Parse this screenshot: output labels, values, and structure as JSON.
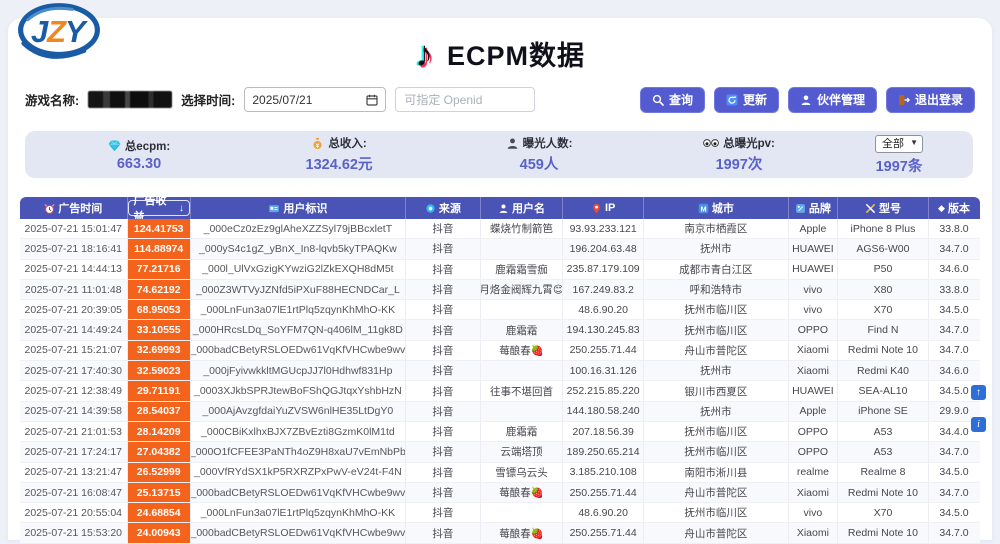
{
  "logo": {
    "text": "JZY"
  },
  "title": {
    "text": "ECPM数据"
  },
  "form": {
    "game_label": "游戏名称:",
    "time_label": "选择时间:",
    "date_value": "2025/07/21",
    "openid_placeholder": "可指定 Openid"
  },
  "actions": {
    "query": "查询",
    "refresh": "更新",
    "partner": "伙伴管理",
    "logout": "退出登录"
  },
  "stats": {
    "ecpm": {
      "label": "总ecpm:",
      "value": "663.30"
    },
    "income": {
      "label": "总收入:",
      "value": "1324.62元"
    },
    "exposure_users": {
      "label": "曝光人数:",
      "value": "459人"
    },
    "exposure_pv": {
      "label": "总曝光pv:",
      "value": "1997次"
    },
    "filter": {
      "selected": "全部",
      "count": "1997条"
    }
  },
  "icons": {
    "sort_arrow": "↓",
    "dropdown_caret": "▼",
    "version_diamond": "◆",
    "note": "♪",
    "float_top": "↑",
    "float_info": "i"
  },
  "table": {
    "columns": [
      "广告时间",
      "广告收益",
      "用户标识",
      "来源",
      "用户名",
      "IP",
      "城市",
      "品牌",
      "型号",
      "版本"
    ],
    "rows": [
      [
        "2025-07-21 15:01:47",
        "124.41753",
        "_000eCz0zEz9glAheXZZSyl79jBBcxletT",
        "抖音",
        "蝶烧竹制箭笆",
        "93.93.233.121",
        "南京市栖霞区",
        "Apple",
        "iPhone 8 Plus",
        "33.8.0"
      ],
      [
        "2025-07-21 18:16:41",
        "114.88974",
        "_000yS4c1gZ_yBnX_In8-lqvb5kyTPAQKw",
        "抖音",
        "",
        "196.204.63.48",
        "抚州市",
        "HUAWEI",
        "AGS6-W00",
        "34.7.0"
      ],
      [
        "2025-07-21 14:44:13",
        "77.21716",
        "_000l_UlVxGzigKYwziG2lZkEXQH8dM5t",
        "抖音",
        "鹿霜霜雪痂",
        "235.87.179.109",
        "成都市青白江区",
        "HUAWEI",
        "P50",
        "34.6.0"
      ],
      [
        "2025-07-21 11:01:48",
        "74.62192",
        "_000Z3WTVyJZNfd5iPXuF88HECNDCar_L",
        "抖音",
        "月烙金阀辉九霄😊",
        "167.249.83.2",
        "呼和浩特市",
        "vivo",
        "X80",
        "33.8.0"
      ],
      [
        "2025-07-21 20:39:05",
        "68.95053",
        "_000LnFun3a07lE1rtPlq5zqynKhMhO-KK",
        "抖音",
        "",
        "48.6.90.20",
        "抚州市临川区",
        "vivo",
        "X70",
        "34.5.0"
      ],
      [
        "2025-07-21 14:49:24",
        "33.10555",
        "_000HRcsLDq_SoYFM7QN-q406lM_11gk8D",
        "抖音",
        "鹿霜霜",
        "194.130.245.83",
        "抚州市临川区",
        "OPPO",
        "Find N",
        "34.7.0"
      ],
      [
        "2025-07-21 15:21:07",
        "32.69993",
        "_000badCBetyRSLOEDw61VqKfVHCwbe9wv",
        "抖音",
        "莓酿春🍓",
        "250.255.71.44",
        "舟山市普陀区",
        "Xiaomi",
        "Redmi Note 10",
        "34.7.0"
      ],
      [
        "2025-07-21 17:40:30",
        "32.59023",
        "_000jFyivwkkltMGUcpJJ7l0Hdhwf831Hp",
        "抖音",
        "",
        "100.16.31.126",
        "抚州市",
        "Xiaomi",
        "Redmi K40",
        "34.6.0"
      ],
      [
        "2025-07-21 12:38:49",
        "29.71191",
        "_0003XJkbSPRJtewBoFShQGJtqxYshbHzN",
        "抖音",
        "往事不堪回首",
        "252.215.85.220",
        "银川市西夏区",
        "HUAWEI",
        "SEA-AL10",
        "34.5.0"
      ],
      [
        "2025-07-21 14:39:58",
        "28.54037",
        "_000AjAvzgfdaiYuZVSW6nlHE35LtDgY0",
        "抖音",
        "",
        "144.180.58.240",
        "抚州市",
        "Apple",
        "iPhone SE",
        "29.9.0"
      ],
      [
        "2025-07-21 21:01:53",
        "28.14209",
        "_000CBiKxlhxBJX7ZBvEzti8GzmK0lM1td",
        "抖音",
        "鹿霜霜",
        "207.18.56.39",
        "抚州市临川区",
        "OPPO",
        "A53",
        "34.4.0"
      ],
      [
        "2025-07-21 17:24:17",
        "27.04382",
        "_000O1fCFEE3PaNTh4oZ9H8xaU7vEmNbPb",
        "抖音",
        "云端塔顶",
        "189.250.65.214",
        "抚州市临川区",
        "OPPO",
        "A53",
        "34.7.0"
      ],
      [
        "2025-07-21 13:21:47",
        "26.52999",
        "_000VfRYdSX1kP5RXRZPxPwV-eV24t-F4N",
        "抖音",
        "雪镖乌云头",
        "3.185.210.108",
        "南阳市淅川县",
        "realme",
        "Realme 8",
        "34.5.0"
      ],
      [
        "2025-07-21 16:08:47",
        "25.13715",
        "_000badCBetyRSLOEDw61VqKfVHCwbe9wv",
        "抖音",
        "莓酿春🍓",
        "250.255.71.44",
        "舟山市普陀区",
        "Xiaomi",
        "Redmi Note 10",
        "34.7.0"
      ],
      [
        "2025-07-21 20:55:04",
        "24.68854",
        "_000LnFun3a07lE1rtPlq5zqynKhMhO-KK",
        "抖音",
        "",
        "48.6.90.20",
        "抚州市临川区",
        "vivo",
        "X70",
        "34.5.0"
      ],
      [
        "2025-07-21 15:53:20",
        "24.00943",
        "_000badCBetyRSLOEDw61VqKfVHCwbe9wv",
        "抖音",
        "莓酿春🍓",
        "250.255.71.44",
        "舟山市普陀区",
        "Xiaomi",
        "Redmi Note 10",
        "34.7.0"
      ]
    ]
  }
}
